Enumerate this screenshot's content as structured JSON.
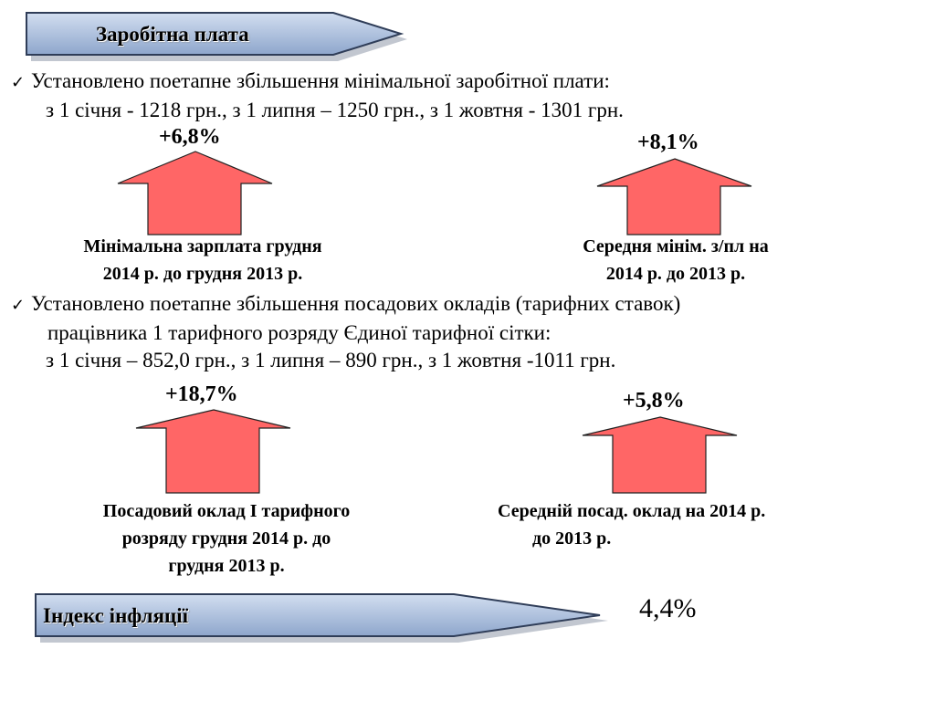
{
  "title_banner": {
    "label": "Заробітна плата"
  },
  "section1": {
    "check_icon": "checkmark-icon",
    "line1": "Установлено поетапне збільшення мінімальної заробітної плати:",
    "line2": "з 1 січня - 1218 грн., з 1 липня – 1250 грн., з 1 жовтня - 1301 грн.",
    "items": [
      {
        "percent": "+6,8%",
        "caption_lines": [
          "Мінімальна зарплата грудня",
          "2014 р. до грудня 2013 р."
        ]
      },
      {
        "percent": "+8,1%",
        "caption_lines": [
          "Середня мінім. з/пл на",
          "2014 р. до 2013 р."
        ]
      }
    ]
  },
  "section2": {
    "check_icon": "checkmark-icon",
    "line1": "Установлено поетапне збільшення посадових окладів (тарифних ставок)",
    "line2": "працівника 1 тарифного розряду Єдиної тарифної сітки:",
    "line3": "з 1 січня – 852,0 грн., з 1 липня – 890 грн., з 1 жовтня -1011 грн.",
    "items": [
      {
        "percent": "+18,7%",
        "caption_lines": [
          "Посадовий оклад І тарифного",
          "розряду грудня 2014 р. до",
          "грудня 2013 р."
        ]
      },
      {
        "percent": "+5,8%",
        "caption_lines": [
          "Середній посад. оклад на 2014 р.",
          "до 2013 р."
        ]
      }
    ]
  },
  "inflation": {
    "label": "Індекс інфляції",
    "value": "4,4%"
  },
  "colors": {
    "banner_top": "#c5d4ea",
    "banner_bottom": "#8ea6cc",
    "banner_border": "#3a4a66",
    "arrow_fill": "#ff6666",
    "arrow_border": "#222222"
  }
}
